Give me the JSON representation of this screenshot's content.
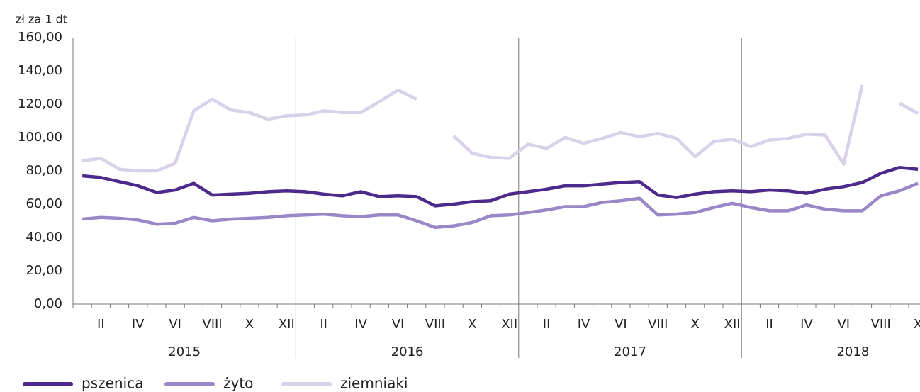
{
  "chart_data": {
    "type": "line",
    "y_label": "zł za 1 dt",
    "categories": [
      null,
      "II",
      null,
      "IV",
      null,
      "VI",
      null,
      "VIII",
      null,
      "X",
      null,
      "XII",
      null,
      "II",
      null,
      "IV",
      null,
      "VI",
      null,
      "VIII",
      null,
      "X",
      null,
      "XII",
      null,
      "II",
      null,
      "IV",
      null,
      "VI",
      null,
      "VIII",
      null,
      "X",
      null,
      "XII",
      null,
      "II",
      null,
      "IV",
      null,
      "VI",
      null,
      "VIII",
      null,
      "X"
    ],
    "years": [
      "2015",
      "2016",
      "2017",
      "2018"
    ],
    "series": [
      {
        "name": "pszenica",
        "color": "#4b2a8c",
        "values": [
          77,
          76,
          73.5,
          71,
          67,
          68.5,
          72.5,
          65.5,
          66,
          66.5,
          67.5,
          68,
          67.5,
          66,
          65,
          67.5,
          64.5,
          65,
          64.5,
          59,
          60,
          61.5,
          62,
          66,
          67.5,
          69,
          71,
          71,
          72,
          73,
          73.5,
          65.5,
          64,
          66,
          67.5,
          68,
          67.5,
          68.5,
          68,
          66.5,
          69,
          70.5,
          73,
          78.5,
          82,
          81
        ]
      },
      {
        "name": "żyto",
        "color": "#9b86c8",
        "values": [
          51,
          52,
          51.5,
          50.5,
          48,
          48.5,
          52,
          50,
          51,
          51.5,
          52,
          53,
          53.5,
          54,
          53,
          52.5,
          53.5,
          53.5,
          50,
          46,
          47,
          49,
          53,
          53.5,
          55,
          56.5,
          58.5,
          58.5,
          61,
          62,
          63.5,
          53.5,
          54,
          55,
          58,
          60.5,
          58,
          56,
          56,
          59.5,
          57,
          56,
          56,
          65,
          68,
          72.5
        ]
      },
      {
        "name": "ziemniaki",
        "color": "#d9d1ea",
        "values": [
          86,
          87.5,
          81,
          80,
          80,
          84.5,
          116,
          123,
          116.5,
          115,
          111,
          113,
          113.5,
          116,
          115,
          115,
          121.5,
          128.5,
          123,
          null,
          101,
          90.5,
          88,
          87.5,
          96,
          93.5,
          100,
          96.5,
          99.5,
          103,
          100.5,
          102.5,
          99.5,
          88.5,
          97.5,
          99,
          94.5,
          98.5,
          99.5,
          102,
          101.5,
          84,
          131.5,
          null,
          120.5,
          114.5
        ]
      }
    ],
    "ylim": [
      0,
      160
    ],
    "yticks": [
      {
        "value": 0,
        "label": "0,00"
      },
      {
        "value": 20,
        "label": "20,00"
      },
      {
        "value": 40,
        "label": "40,00"
      },
      {
        "value": 60,
        "label": "60,00"
      },
      {
        "value": 80,
        "label": "80,00"
      },
      {
        "value": 100,
        "label": "100,00"
      },
      {
        "value": 120,
        "label": "120,00"
      },
      {
        "value": 140,
        "label": "140,00"
      },
      {
        "value": 160,
        "label": "160,00"
      }
    ],
    "grid": false,
    "legend": "bottom"
  }
}
